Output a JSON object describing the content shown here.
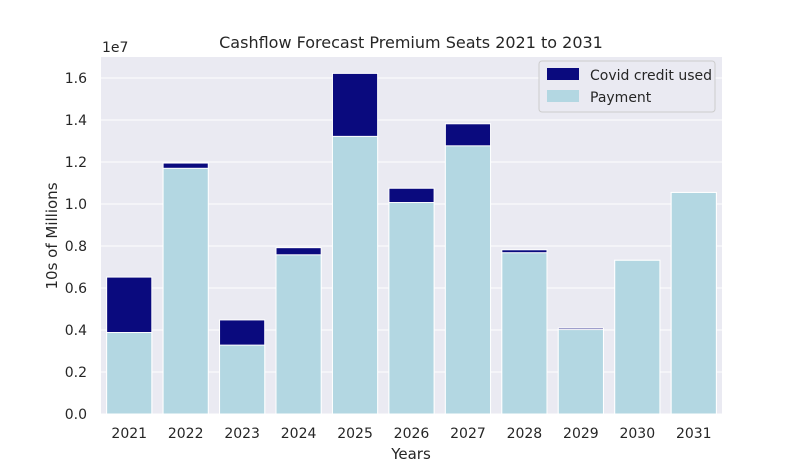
{
  "chart_data": {
    "type": "bar",
    "title": "Cashflow Forecast Premium Seats 2021 to 2031",
    "xlabel": "Years",
    "ylabel": "10s of Millions",
    "offset_label": "1e7",
    "categories": [
      "2021",
      "2022",
      "2023",
      "2024",
      "2025",
      "2026",
      "2027",
      "2028",
      "2029",
      "2030",
      "2031"
    ],
    "series": [
      {
        "name": "Covid credit used",
        "color": "#0a0a7e",
        "total_values": [
          0.652,
          1.195,
          0.448,
          0.792,
          1.622,
          1.075,
          1.382,
          0.782,
          0.409,
          0.732,
          1.055
        ]
      },
      {
        "name": "Payment",
        "color": "#b3d7e2",
        "values": [
          0.388,
          1.17,
          0.328,
          0.758,
          1.322,
          1.007,
          1.277,
          0.768,
          0.402,
          0.732,
          1.055
        ]
      }
    ],
    "ylim": [
      0,
      1.7
    ],
    "yticks": [
      "0.0",
      "0.2",
      "0.4",
      "0.6",
      "0.8",
      "1.0",
      "1.2",
      "1.4",
      "1.6"
    ],
    "ytick_values": [
      0,
      0.2,
      0.4,
      0.6,
      0.8,
      1.0,
      1.2,
      1.4,
      1.6
    ],
    "grid": true,
    "legend_position": "top-right",
    "background": "#eaeaf2"
  }
}
